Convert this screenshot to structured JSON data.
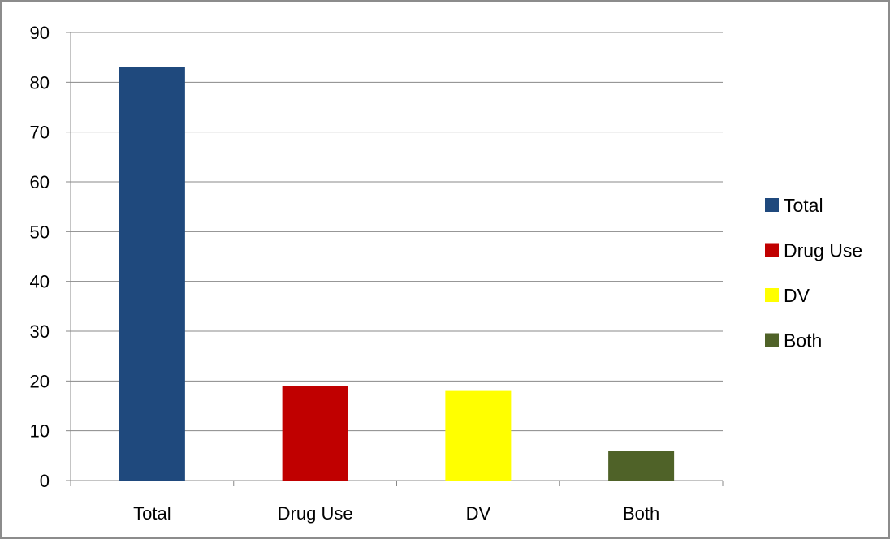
{
  "chart_data": {
    "type": "bar",
    "categories": [
      "Total",
      "Drug Use",
      "DV",
      "Both"
    ],
    "values": [
      83,
      19,
      18,
      6
    ],
    "colors": [
      "#1f497d",
      "#c00000",
      "#ffff00",
      "#4f6228"
    ],
    "title": "",
    "xlabel": "",
    "ylabel": "",
    "ylim": [
      0,
      90
    ],
    "yticks": [
      0,
      10,
      20,
      30,
      40,
      50,
      60,
      70,
      80,
      90
    ],
    "grid": "horizontal",
    "legend": {
      "placement": "right",
      "entries": [
        {
          "label": "Total",
          "color": "#1f497d"
        },
        {
          "label": "Drug Use",
          "color": "#c00000"
        },
        {
          "label": "DV",
          "color": "#ffff00"
        },
        {
          "label": "Both",
          "color": "#4f6228"
        }
      ]
    }
  }
}
